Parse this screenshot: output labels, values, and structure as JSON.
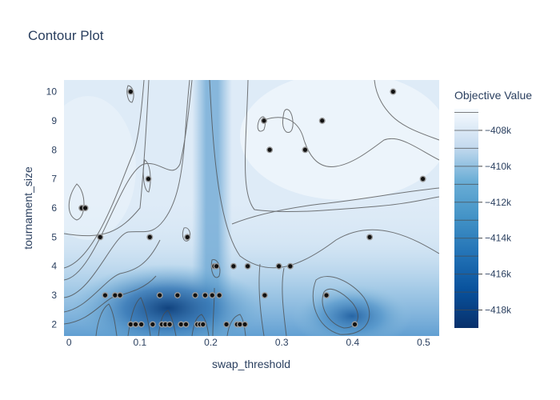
{
  "chart_data": {
    "type": "contour",
    "title": "Contour Plot",
    "xlabel": "swap_threshold",
    "ylabel": "tournament_size",
    "xlim": [
      -0.007,
      0.522
    ],
    "ylim": [
      1.6,
      10.4
    ],
    "x_ticks": [
      0,
      0.1,
      0.2,
      0.3,
      0.4,
      0.5
    ],
    "x_tick_labels": [
      "0",
      "0.1",
      "0.2",
      "0.3",
      "0.4",
      "0.5"
    ],
    "y_ticks": [
      2,
      3,
      4,
      5,
      6,
      7,
      8,
      9,
      10
    ],
    "y_tick_labels": [
      "2",
      "3",
      "4",
      "5",
      "6",
      "7",
      "8",
      "9",
      "10"
    ],
    "colorbar": {
      "title": "Objective Value",
      "range": [
        -419000,
        -406800
      ],
      "ticks": [
        -408000,
        -410000,
        -412000,
        -414000,
        -416000,
        -418000
      ],
      "tick_labels": [
        "−408k",
        "−410k",
        "−412k",
        "−414k",
        "−416k",
        "−418k"
      ],
      "colors": [
        "#08306b",
        "#2171b5",
        "#4292c6",
        "#6baed6",
        "#9ecae1",
        "#c6dbef",
        "#f7fbff"
      ]
    },
    "points": [
      {
        "x": 0.018,
        "y": 6
      },
      {
        "x": 0.023,
        "y": 6
      },
      {
        "x": 0.044,
        "y": 5
      },
      {
        "x": 0.051,
        "y": 3
      },
      {
        "x": 0.065,
        "y": 3
      },
      {
        "x": 0.072,
        "y": 3
      },
      {
        "x": 0.087,
        "y": 10
      },
      {
        "x": 0.087,
        "y": 2
      },
      {
        "x": 0.094,
        "y": 2
      },
      {
        "x": 0.102,
        "y": 2
      },
      {
        "x": 0.112,
        "y": 7
      },
      {
        "x": 0.114,
        "y": 5
      },
      {
        "x": 0.118,
        "y": 2
      },
      {
        "x": 0.128,
        "y": 3
      },
      {
        "x": 0.131,
        "y": 2
      },
      {
        "x": 0.136,
        "y": 2
      },
      {
        "x": 0.142,
        "y": 2
      },
      {
        "x": 0.153,
        "y": 3
      },
      {
        "x": 0.158,
        "y": 2
      },
      {
        "x": 0.165,
        "y": 2
      },
      {
        "x": 0.167,
        "y": 5
      },
      {
        "x": 0.178,
        "y": 3
      },
      {
        "x": 0.181,
        "y": 2
      },
      {
        "x": 0.185,
        "y": 2
      },
      {
        "x": 0.189,
        "y": 2
      },
      {
        "x": 0.192,
        "y": 3
      },
      {
        "x": 0.202,
        "y": 3
      },
      {
        "x": 0.205,
        "y": 4
      },
      {
        "x": 0.208,
        "y": 4
      },
      {
        "x": 0.212,
        "y": 3
      },
      {
        "x": 0.222,
        "y": 2
      },
      {
        "x": 0.232,
        "y": 4
      },
      {
        "x": 0.237,
        "y": 2
      },
      {
        "x": 0.241,
        "y": 2
      },
      {
        "x": 0.248,
        "y": 2
      },
      {
        "x": 0.252,
        "y": 4
      },
      {
        "x": 0.275,
        "y": 9
      },
      {
        "x": 0.276,
        "y": 3
      },
      {
        "x": 0.283,
        "y": 8
      },
      {
        "x": 0.296,
        "y": 4
      },
      {
        "x": 0.312,
        "y": 4
      },
      {
        "x": 0.333,
        "y": 8
      },
      {
        "x": 0.357,
        "y": 9
      },
      {
        "x": 0.363,
        "y": 3
      },
      {
        "x": 0.403,
        "y": 2
      },
      {
        "x": 0.424,
        "y": 5
      },
      {
        "x": 0.457,
        "y": 10
      },
      {
        "x": 0.499,
        "y": 7
      }
    ]
  }
}
